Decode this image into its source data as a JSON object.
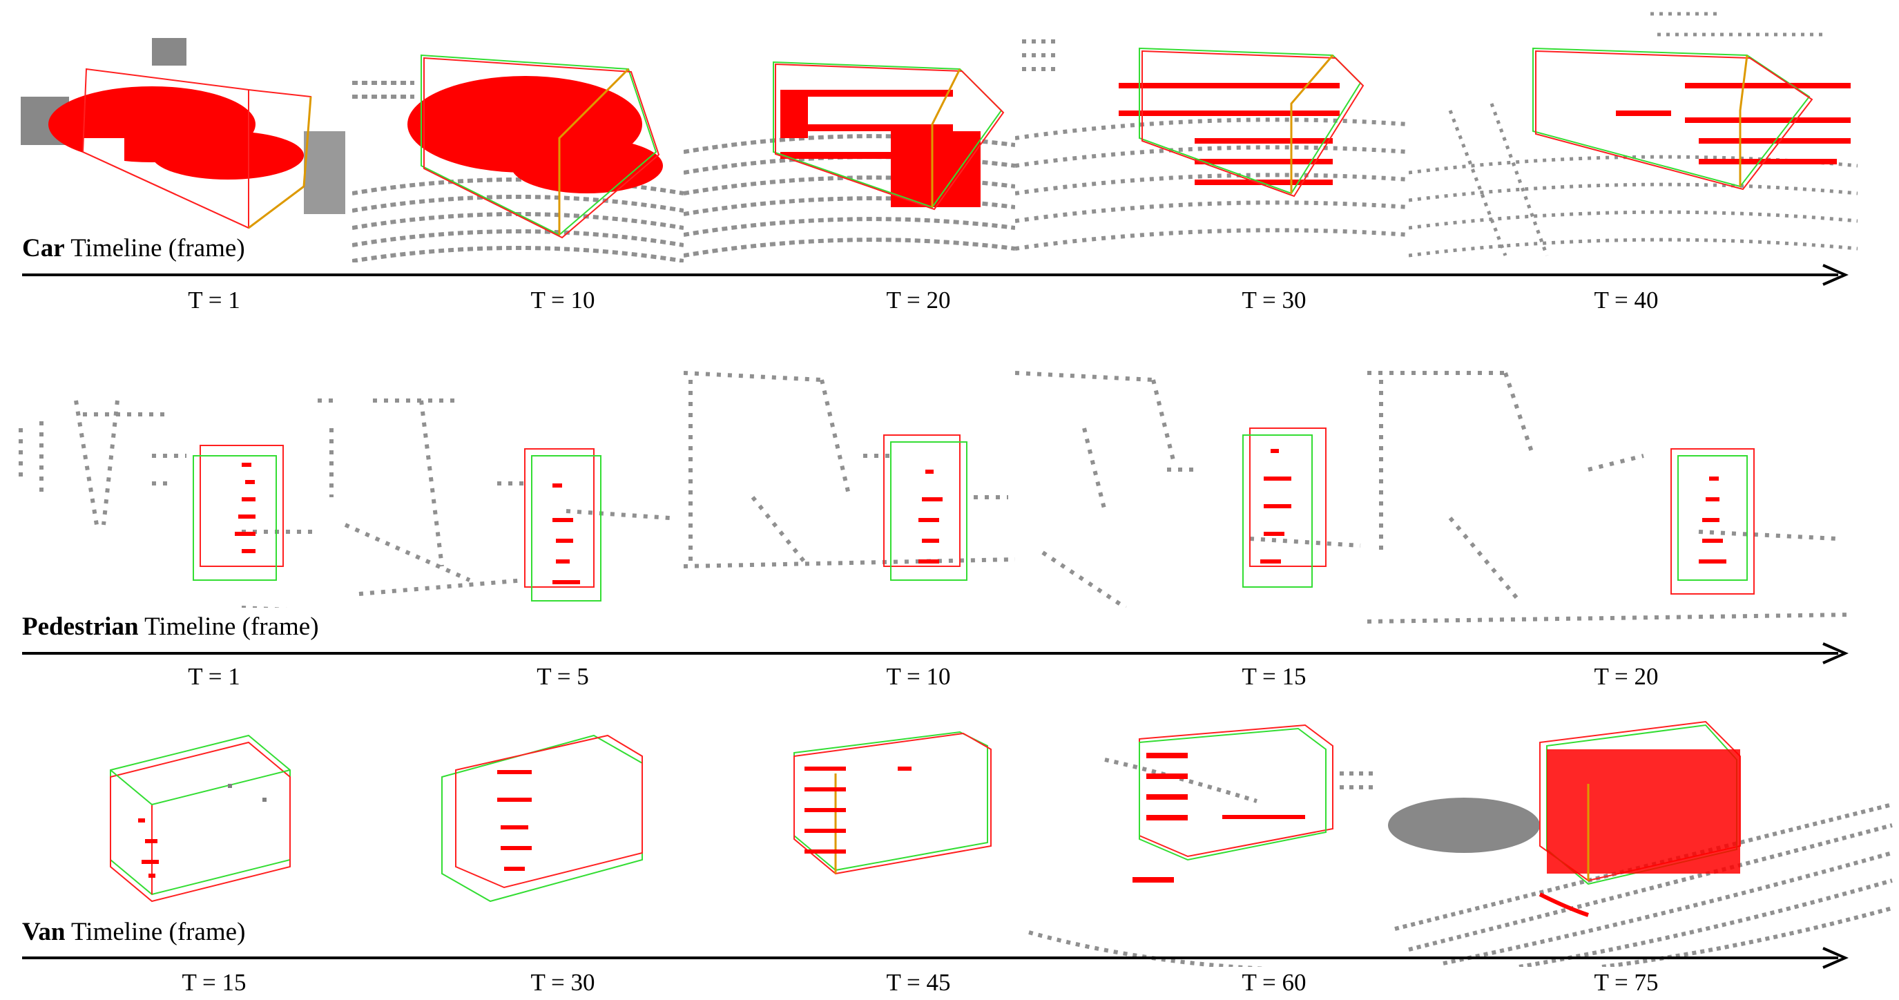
{
  "rows": [
    {
      "id": "car",
      "category": "Car",
      "suffix": " Timeline (frame)",
      "frames": [
        "T = 1",
        "T = 10",
        "T = 20",
        "T = 30",
        "T = 40"
      ]
    },
    {
      "id": "pedestrian",
      "category": "Pedestrian",
      "suffix": " Timeline (frame)",
      "frames": [
        "T = 1",
        "T = 5",
        "T = 10",
        "T = 15",
        "T = 20"
      ]
    },
    {
      "id": "van",
      "category": "Van",
      "suffix": " Timeline (frame)",
      "frames": [
        "T = 15",
        "T = 30",
        "T = 45",
        "T = 60",
        "T = 75"
      ]
    }
  ],
  "colors": {
    "points": "#808080",
    "target_points": "#ff0000",
    "box_gt": "#33dd33",
    "box_pred": "#ff2020",
    "axis": "#000000"
  }
}
